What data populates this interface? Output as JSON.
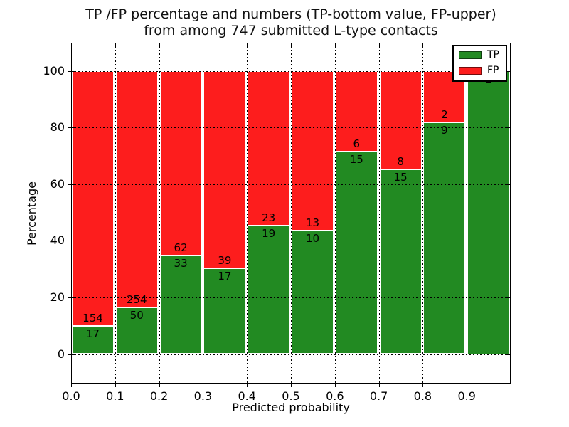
{
  "title": {
    "line1": "TP /FP percentage and numbers (TP-bottom value, FP-upper)",
    "line2": "from among 747 submitted L-type contacts"
  },
  "axes": {
    "x_label": "Predicted probability",
    "y_label": "Percentage",
    "x_tick_labels": [
      "0.0",
      "0.1",
      "0.2",
      "0.3",
      "0.4",
      "0.5",
      "0.6",
      "0.7",
      "0.8",
      "0.9"
    ],
    "y_tick_labels": [
      "0",
      "20",
      "40",
      "60",
      "80",
      "100"
    ]
  },
  "legend": {
    "items": [
      {
        "label": "TP",
        "color": "#228a22"
      },
      {
        "label": "FP",
        "color": "#fd1d1d"
      }
    ]
  },
  "chart_data": {
    "type": "bar",
    "stacked": true,
    "normalized_to_percent": true,
    "title": "TP /FP percentage and numbers (TP-bottom value, FP-upper) from among 747 submitted L-type contacts",
    "xlabel": "Predicted probability",
    "ylabel": "Percentage",
    "xlim": [
      0,
      1.0
    ],
    "ylim": [
      -10,
      110
    ],
    "y_ticks": [
      0,
      20,
      40,
      60,
      80,
      100
    ],
    "grid": true,
    "grid_style": "dotted",
    "legend_position": "upper right",
    "total_contacts": 747,
    "bin_starts": [
      0.0,
      0.1,
      0.2,
      0.3,
      0.4,
      0.5,
      0.6,
      0.7,
      0.8,
      0.9
    ],
    "bin_width": 0.1,
    "series": [
      {
        "name": "TP",
        "color": "#228a22",
        "counts": [
          17,
          50,
          33,
          17,
          19,
          10,
          15,
          15,
          9,
          1
        ]
      },
      {
        "name": "FP",
        "color": "#fd1d1d",
        "counts": [
          154,
          254,
          62,
          39,
          23,
          13,
          6,
          8,
          2,
          0
        ]
      }
    ],
    "tp_percent": [
      9.9,
      16.4,
      34.7,
      30.4,
      45.2,
      43.5,
      71.4,
      65.2,
      81.8,
      100.0
    ]
  }
}
